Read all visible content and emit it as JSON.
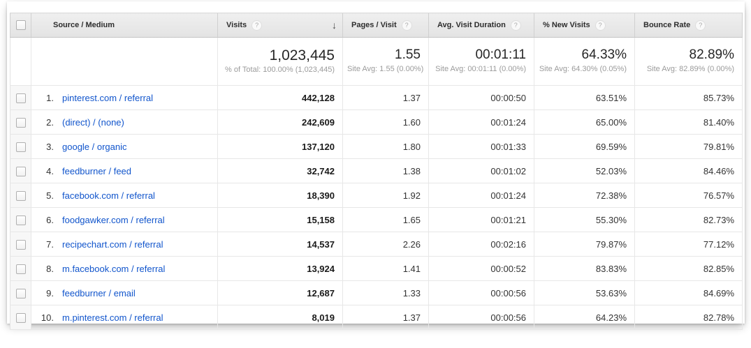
{
  "ui": {
    "help_glyph": "?",
    "sort_arrow": "↓"
  },
  "colors": {
    "link_blue": "#1155cc",
    "header_bg": "#e9e9e9",
    "checkbox_col_bg": "#f7f7f7",
    "row_border": "#e7e7e7",
    "text_dark": "#333333",
    "subtext_gray": "#9b9b9b"
  },
  "table": {
    "columns": [
      {
        "label": "Source / Medium",
        "help": false
      },
      {
        "label": "Visits",
        "help": true,
        "sorted": "desc"
      },
      {
        "label": "Pages / Visit",
        "help": true
      },
      {
        "label": "Avg. Visit Duration",
        "help": true
      },
      {
        "label": "% New Visits",
        "help": true
      },
      {
        "label": "Bounce Rate",
        "help": true
      }
    ],
    "summary": {
      "visits": {
        "value": "1,023,445",
        "subtext": "% of Total: 100.00% (1,023,445)"
      },
      "pages_per_visit": {
        "value": "1.55",
        "subtext": "Site Avg: 1.55 (0.00%)"
      },
      "avg_visit_duration": {
        "value": "00:01:11",
        "subtext": "Site Avg: 00:01:11 (0.00%)"
      },
      "pct_new_visits": {
        "value": "64.33%",
        "subtext": "Site Avg: 64.30% (0.05%)"
      },
      "bounce_rate": {
        "value": "82.89%",
        "subtext": "Site Avg: 82.89% (0.00%)"
      }
    },
    "rows": [
      {
        "rank": "1.",
        "source_medium": "pinterest.com / referral",
        "visits": "442,128",
        "pages_per_visit": "1.37",
        "avg_visit_duration": "00:00:50",
        "pct_new_visits": "63.51%",
        "bounce_rate": "85.73%"
      },
      {
        "rank": "2.",
        "source_medium": "(direct) / (none)",
        "visits": "242,609",
        "pages_per_visit": "1.60",
        "avg_visit_duration": "00:01:24",
        "pct_new_visits": "65.00%",
        "bounce_rate": "81.40%"
      },
      {
        "rank": "3.",
        "source_medium": "google / organic",
        "visits": "137,120",
        "pages_per_visit": "1.80",
        "avg_visit_duration": "00:01:33",
        "pct_new_visits": "69.59%",
        "bounce_rate": "79.81%"
      },
      {
        "rank": "4.",
        "source_medium": "feedburner / feed",
        "visits": "32,742",
        "pages_per_visit": "1.38",
        "avg_visit_duration": "00:01:02",
        "pct_new_visits": "52.03%",
        "bounce_rate": "84.46%"
      },
      {
        "rank": "5.",
        "source_medium": "facebook.com / referral",
        "visits": "18,390",
        "pages_per_visit": "1.92",
        "avg_visit_duration": "00:01:24",
        "pct_new_visits": "72.38%",
        "bounce_rate": "76.57%"
      },
      {
        "rank": "6.",
        "source_medium": "foodgawker.com / referral",
        "visits": "15,158",
        "pages_per_visit": "1.65",
        "avg_visit_duration": "00:01:21",
        "pct_new_visits": "55.30%",
        "bounce_rate": "82.73%"
      },
      {
        "rank": "7.",
        "source_medium": "recipechart.com / referral",
        "visits": "14,537",
        "pages_per_visit": "2.26",
        "avg_visit_duration": "00:02:16",
        "pct_new_visits": "79.87%",
        "bounce_rate": "77.12%"
      },
      {
        "rank": "8.",
        "source_medium": "m.facebook.com / referral",
        "visits": "13,924",
        "pages_per_visit": "1.41",
        "avg_visit_duration": "00:00:52",
        "pct_new_visits": "83.83%",
        "bounce_rate": "82.85%"
      },
      {
        "rank": "9.",
        "source_medium": "feedburner / email",
        "visits": "12,687",
        "pages_per_visit": "1.33",
        "avg_visit_duration": "00:00:56",
        "pct_new_visits": "53.63%",
        "bounce_rate": "84.69%"
      },
      {
        "rank": "10.",
        "source_medium": "m.pinterest.com / referral",
        "visits": "8,019",
        "pages_per_visit": "1.37",
        "avg_visit_duration": "00:00:56",
        "pct_new_visits": "64.23%",
        "bounce_rate": "82.78%"
      }
    ]
  }
}
